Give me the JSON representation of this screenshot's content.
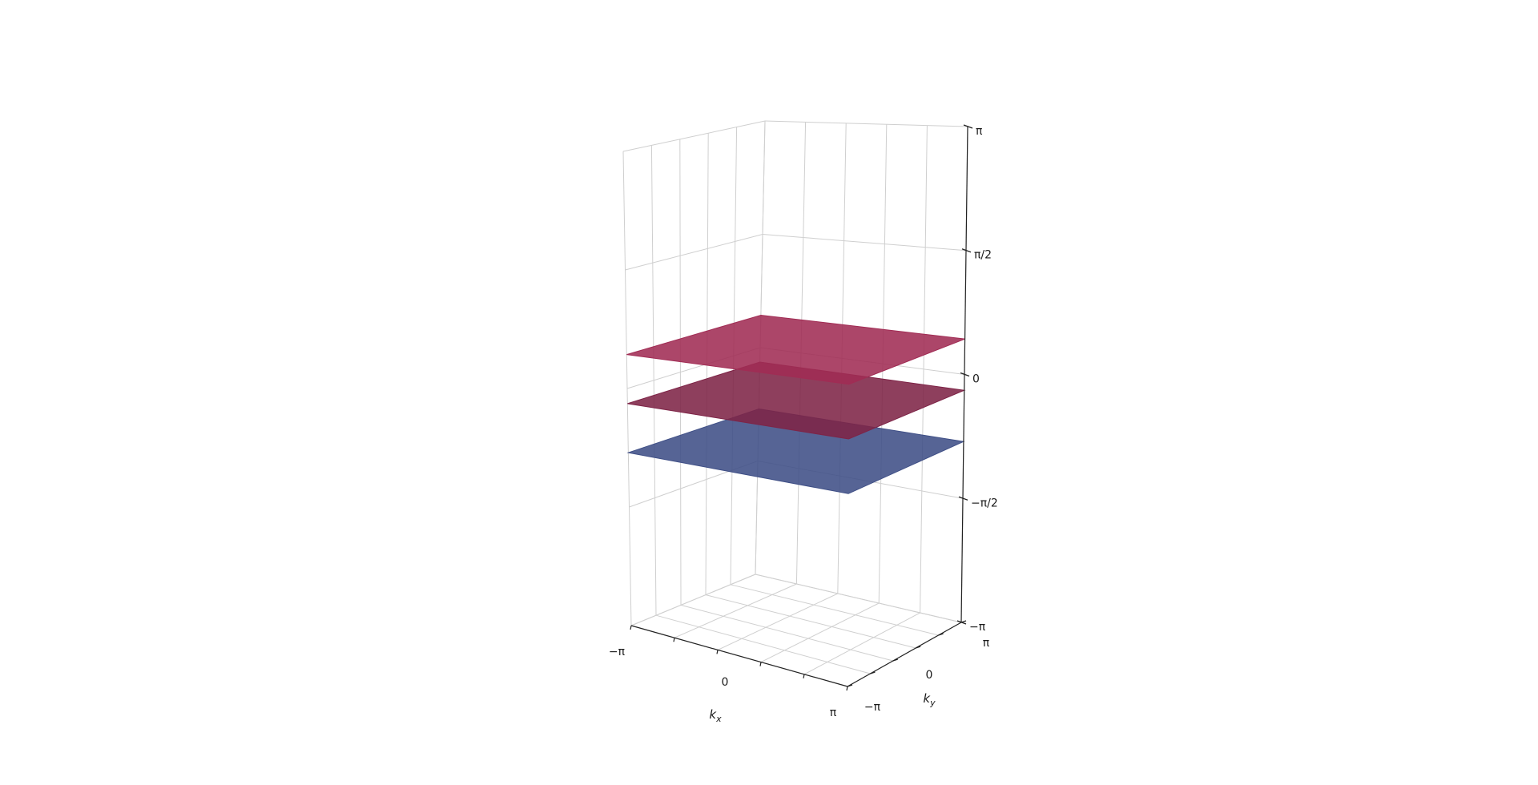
{
  "chart_data": {
    "type": "surface3d",
    "title": "",
    "xlabel": "k_x",
    "ylabel": "k_y",
    "zlabel": "",
    "xlim": [
      -3.14159,
      3.14159
    ],
    "ylim": [
      -3.14159,
      3.14159
    ],
    "zlim": [
      -3.14159,
      3.14159
    ],
    "x_ticks": [
      {
        "value": -3.14159,
        "label": "−π"
      },
      {
        "value": 0,
        "label": "0"
      },
      {
        "value": 3.14159,
        "label": "π"
      }
    ],
    "y_ticks": [
      {
        "value": -3.14159,
        "label": "−π"
      },
      {
        "value": 0,
        "label": "0"
      },
      {
        "value": 3.14159,
        "label": "π"
      }
    ],
    "z_ticks": [
      {
        "value": -3.14159,
        "label": "−π"
      },
      {
        "value": -1.5708,
        "label": "−π/2"
      },
      {
        "value": 0,
        "label": "0"
      },
      {
        "value": 1.5708,
        "label": "π/2"
      },
      {
        "value": 3.14159,
        "label": "π"
      }
    ],
    "grid": true,
    "series": [
      {
        "z": 0.45,
        "color": "#a12c54"
      },
      {
        "z": -0.2,
        "color": "#7e2447"
      },
      {
        "z": -0.85,
        "color": "#3f4f86"
      }
    ]
  }
}
